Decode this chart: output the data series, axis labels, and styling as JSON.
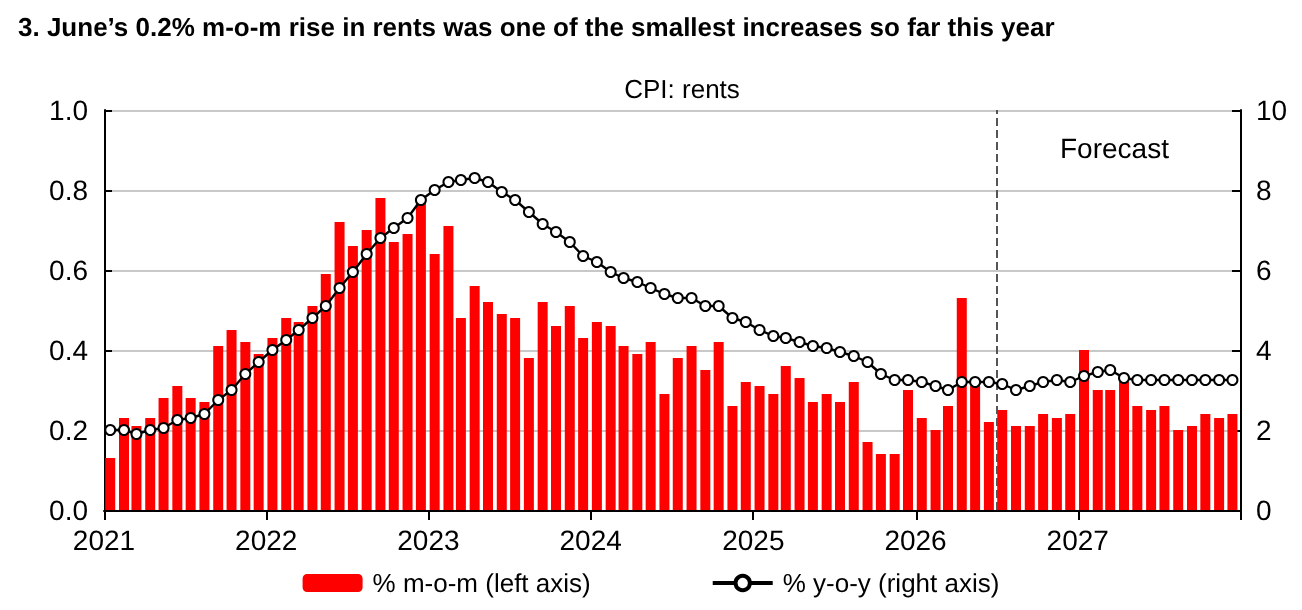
{
  "chart_data": {
    "type": "bar",
    "title": "3. June’s 0.2% m-o-m rise in rents was one of the smallest increases so far this year",
    "subtitle": "CPI: rents",
    "x": [
      "2021-01-15",
      "2021-02-15",
      "2021-03-15",
      "2021-04-15",
      "2021-05-15",
      "2021-06-15",
      "2021-07-15",
      "2021-08-15",
      "2021-09-15",
      "2021-10-15",
      "2021-11-15",
      "2021-12-15",
      "2022-01-15",
      "2022-02-15",
      "2022-03-15",
      "2022-04-15",
      "2022-05-15",
      "2022-06-15",
      "2022-07-15",
      "2022-08-15",
      "2022-09-15",
      "2022-10-15",
      "2022-11-15",
      "2022-12-15",
      "2023-01-15",
      "2023-02-15",
      "2023-03-15",
      "2023-04-15",
      "2023-05-15",
      "2023-06-15",
      "2023-07-15",
      "2023-08-15",
      "2023-09-15",
      "2023-10-15",
      "2023-11-15",
      "2023-12-15",
      "2024-01-15",
      "2024-02-15",
      "2024-03-15",
      "2024-04-15",
      "2024-05-15",
      "2024-06-15",
      "2024-07-15",
      "2024-08-15",
      "2024-09-15",
      "2024-10-15",
      "2024-11-15",
      "2024-12-15",
      "2025-01-15",
      "2025-02-15",
      "2025-03-15",
      "2025-04-15",
      "2025-05-15",
      "2025-06-15",
      "2025-07-15",
      "2025-08-15",
      "2025-09-15",
      "2025-10-15",
      "2025-11-15",
      "2025-12-15",
      "2026-01-15",
      "2026-02-15",
      "2026-03-15",
      "2026-04-15",
      "2026-05-15",
      "2026-06-15",
      "2026-07-15",
      "2026-08-15",
      "2026-09-15",
      "2026-10-15",
      "2026-11-15",
      "2026-12-15",
      "2027-01-15",
      "2027-02-15",
      "2027-03-15",
      "2027-04-15",
      "2027-05-15",
      "2027-06-15",
      "2027-07-15",
      "2027-08-15",
      "2027-09-15",
      "2027-10-15",
      "2027-11-15",
      "2027-12-15"
    ],
    "series": [
      {
        "name": "% m-o-m (left axis)",
        "color": "#ff0000",
        "values": [
          0.13,
          0.23,
          0.21,
          0.23,
          0.28,
          0.31,
          0.28,
          0.27,
          0.41,
          0.45,
          0.42,
          0.39,
          0.43,
          0.48,
          0.47,
          0.51,
          0.59,
          0.72,
          0.66,
          0.7,
          0.78,
          0.67,
          0.69,
          0.77,
          0.64,
          0.71,
          0.48,
          0.56,
          0.52,
          0.49,
          0.48,
          0.38,
          0.52,
          0.46,
          0.51,
          0.43,
          0.47,
          0.46,
          0.41,
          0.39,
          0.42,
          0.29,
          0.38,
          0.41,
          0.35,
          0.42,
          0.26,
          0.32,
          0.31,
          0.29,
          0.36,
          0.33,
          0.27,
          0.29,
          0.27,
          0.32,
          0.17,
          0.14,
          0.14,
          0.3,
          0.23,
          0.2,
          0.26,
          0.53,
          0.31,
          0.22,
          0.25,
          0.21,
          0.21,
          0.24,
          0.23,
          0.24,
          0.4,
          0.3,
          0.3,
          0.32,
          0.26,
          0.25,
          0.26,
          0.2,
          0.21,
          0.24,
          0.23,
          0.24
        ]
      },
      {
        "name": "% y-o-y (right axis)",
        "type": "line",
        "axis": "y2",
        "color": "#000000",
        "marker": "circle",
        "values": [
          2.0,
          2.0,
          1.9,
          2.0,
          2.05,
          2.25,
          2.3,
          2.4,
          2.75,
          3.0,
          3.4,
          3.7,
          4.0,
          4.25,
          4.5,
          4.8,
          5.1,
          5.55,
          5.95,
          6.4,
          6.8,
          7.05,
          7.3,
          7.75,
          8.0,
          8.2,
          8.25,
          8.3,
          8.2,
          7.95,
          7.75,
          7.45,
          7.15,
          6.95,
          6.7,
          6.35,
          6.2,
          5.95,
          5.8,
          5.7,
          5.55,
          5.4,
          5.3,
          5.3,
          5.1,
          5.1,
          4.8,
          4.7,
          4.5,
          4.35,
          4.3,
          4.2,
          4.1,
          4.05,
          3.95,
          3.85,
          3.7,
          3.4,
          3.25,
          3.25,
          3.2,
          3.1,
          3.0,
          3.2,
          3.2,
          3.2,
          3.15,
          3.0,
          3.1,
          3.2,
          3.25,
          3.2,
          3.35,
          3.45,
          3.5,
          3.3,
          3.25,
          3.25,
          3.25,
          3.25,
          3.25,
          3.25,
          3.25,
          3.25
        ]
      }
    ],
    "xlim": [
      "2021-01-01",
      "2028-01-01"
    ],
    "xticks": [
      "2021",
      "2022",
      "2023",
      "2024",
      "2025",
      "2026",
      "2027",
      {
        "value": "2028",
        "label": null
      }
    ],
    "ylim": [
      0,
      1
    ],
    "yticks": [
      {
        "value": 0,
        "label": "0.0"
      },
      {
        "value": 0.2,
        "label": "0.2"
      },
      {
        "value": 0.4,
        "label": "0.4"
      },
      {
        "value": 0.6,
        "label": "0.6"
      },
      {
        "value": 0.8,
        "label": "0.8"
      },
      {
        "value": 1,
        "label": "1.0"
      }
    ],
    "y2lim": [
      0,
      10
    ],
    "y2ticks": [
      0,
      2,
      4,
      6,
      8,
      10
    ],
    "ref_lines": [
      {
        "axis": "x",
        "value": "2026-07-01",
        "color": "#555555",
        "line_style": "dashed"
      }
    ],
    "annotations": [
      "Forecast"
    ],
    "grid": "y",
    "legend": "bottom"
  }
}
